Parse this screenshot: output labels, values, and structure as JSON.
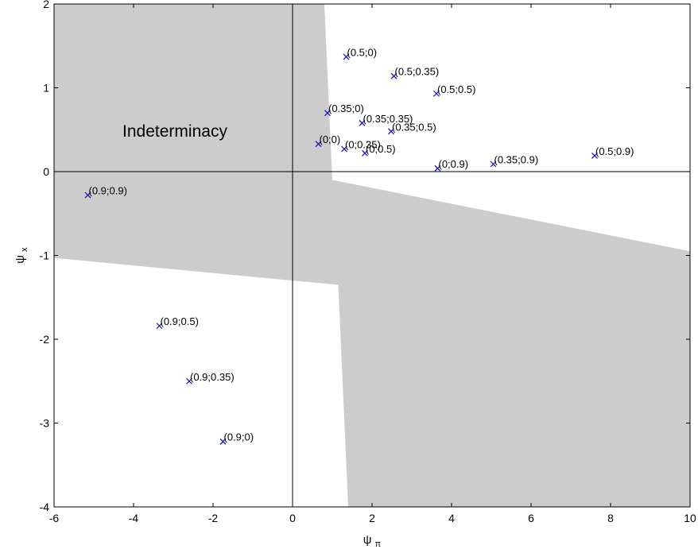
{
  "chart_data": {
    "type": "scatter",
    "title": "",
    "xlabel": "ψ",
    "xlabel_sub": "π",
    "ylabel": "ψ",
    "ylabel_sub": "x",
    "xlim": [
      -6,
      10
    ],
    "ylim": [
      -4,
      2
    ],
    "xticks": [
      -6,
      -4,
      -2,
      0,
      2,
      4,
      6,
      8,
      10
    ],
    "yticks": [
      -4,
      -3,
      -2,
      -1,
      0,
      1,
      2
    ],
    "grid": false,
    "region_annotation": "Indeterminacy",
    "colors": {
      "marker": "#1010c0",
      "region": "#cccccc",
      "axis": "#000000"
    },
    "marker": "x",
    "indeterminacy_region": {
      "upper_left": [
        [
          -6,
          2
        ],
        [
          0.8,
          2
        ],
        [
          1.0,
          -0.1
        ],
        [
          10,
          -0.95
        ],
        [
          10,
          -4
        ],
        [
          1.4,
          -4
        ],
        [
          1.15,
          -1.35
        ],
        [
          0,
          -1.3
        ],
        [
          -6,
          -1.03
        ]
      ]
    },
    "points": [
      {
        "label": "(0.5;0)",
        "x": 1.35,
        "y": 1.37
      },
      {
        "label": "(0.5;0.35)",
        "x": 2.55,
        "y": 1.14
      },
      {
        "label": "(0.5;0.5)",
        "x": 3.62,
        "y": 0.93
      },
      {
        "label": "(0.35;0)",
        "x": 0.88,
        "y": 0.7
      },
      {
        "label": "(0.35;0.35)",
        "x": 1.75,
        "y": 0.58
      },
      {
        "label": "(0.35;0.5)",
        "x": 2.48,
        "y": 0.48
      },
      {
        "label": "(0;0)",
        "x": 0.65,
        "y": 0.33
      },
      {
        "label": "(0;0.35)",
        "x": 1.3,
        "y": 0.27
      },
      {
        "label": "(0;0.5)",
        "x": 1.82,
        "y": 0.22
      },
      {
        "label": "(0;0.9)",
        "x": 3.65,
        "y": 0.04
      },
      {
        "label": "(0.35;0.9)",
        "x": 5.05,
        "y": 0.09
      },
      {
        "label": "(0.5;0.9)",
        "x": 7.6,
        "y": 0.19
      },
      {
        "label": "(0.9;0.9)",
        "x": -5.15,
        "y": -0.28
      },
      {
        "label": "(0.9;0.5)",
        "x": -3.35,
        "y": -1.84
      },
      {
        "label": "(0.9;0.35)",
        "x": -2.6,
        "y": -2.5
      },
      {
        "label": "(0.9;0)",
        "x": -1.75,
        "y": -3.22
      }
    ]
  }
}
